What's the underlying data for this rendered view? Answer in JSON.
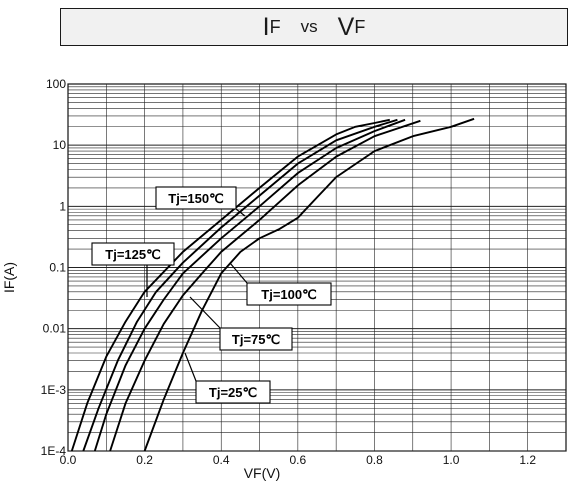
{
  "header": {
    "title_parts": [
      {
        "big": "I",
        "small": "F"
      },
      {
        "vs": "vs"
      },
      {
        "big": "V",
        "small": "F"
      }
    ]
  },
  "chart_data": {
    "type": "line",
    "title": "IF vs VF",
    "xlabel": "VF(V)",
    "ylabel": "IF(A)",
    "xlim": [
      0,
      1.3
    ],
    "ylim": [
      0.0001,
      100
    ],
    "yscale": "log",
    "grid": true,
    "x_ticks": [
      0.0,
      0.2,
      0.4,
      0.6,
      0.8,
      1.0,
      1.2
    ],
    "x_tick_labels": [
      "0.0",
      "0.2",
      "0.4",
      "0.6",
      "0.8",
      "1.0",
      "1.2"
    ],
    "y_ticks": [
      0.0001,
      0.001,
      0.01,
      0.1,
      1,
      10,
      100
    ],
    "y_tick_labels": [
      "1E-4",
      "1E-3",
      "0.01",
      "0.1",
      "1",
      "10",
      "100"
    ],
    "series": [
      {
        "name": "Tj=150℃",
        "x": [
          0.01,
          0.05,
          0.1,
          0.15,
          0.2,
          0.3,
          0.4,
          0.5,
          0.6,
          0.7,
          0.75,
          0.8,
          0.84
        ],
        "y": [
          0.0001,
          0.0006,
          0.0035,
          0.013,
          0.04,
          0.18,
          0.6,
          2.0,
          6.5,
          15,
          20,
          23,
          26
        ]
      },
      {
        "name": "Tj=125℃",
        "x": [
          0.04,
          0.08,
          0.13,
          0.18,
          0.23,
          0.3,
          0.4,
          0.5,
          0.6,
          0.7,
          0.8,
          0.86
        ],
        "y": [
          0.0001,
          0.0005,
          0.003,
          0.013,
          0.04,
          0.12,
          0.45,
          1.5,
          5,
          12,
          20,
          26
        ]
      },
      {
        "name": "Tj=100℃",
        "x": [
          0.07,
          0.1,
          0.15,
          0.2,
          0.25,
          0.3,
          0.4,
          0.5,
          0.6,
          0.7,
          0.8,
          0.88
        ],
        "y": [
          0.0001,
          0.0004,
          0.0025,
          0.01,
          0.03,
          0.08,
          0.3,
          1.0,
          3.5,
          9,
          17,
          26
        ]
      },
      {
        "name": "Tj=75℃",
        "x": [
          0.11,
          0.15,
          0.2,
          0.25,
          0.3,
          0.35,
          0.4,
          0.5,
          0.6,
          0.7,
          0.8,
          0.92
        ],
        "y": [
          0.0001,
          0.0006,
          0.003,
          0.012,
          0.035,
          0.08,
          0.18,
          0.6,
          2.2,
          6.5,
          14,
          25
        ]
      },
      {
        "name": "Tj=25℃",
        "x": [
          0.2,
          0.25,
          0.3,
          0.35,
          0.4,
          0.45,
          0.5,
          0.55,
          0.6,
          0.65,
          0.7,
          0.8,
          0.9,
          1.0,
          1.06
        ],
        "y": [
          0.0001,
          0.0007,
          0.004,
          0.02,
          0.08,
          0.18,
          0.3,
          0.42,
          0.65,
          1.4,
          3,
          8,
          14,
          20,
          27
        ]
      }
    ],
    "annotations": [
      {
        "text": "Tj=150℃",
        "series": "Tj=150℃"
      },
      {
        "text": "Tj=125℃",
        "series": "Tj=125℃"
      },
      {
        "text": "Tj=100℃",
        "series": "Tj=100℃"
      },
      {
        "text": "Tj=75℃",
        "series": "Tj=75℃"
      },
      {
        "text": "Tj=25℃",
        "series": "Tj=25℃"
      }
    ]
  }
}
